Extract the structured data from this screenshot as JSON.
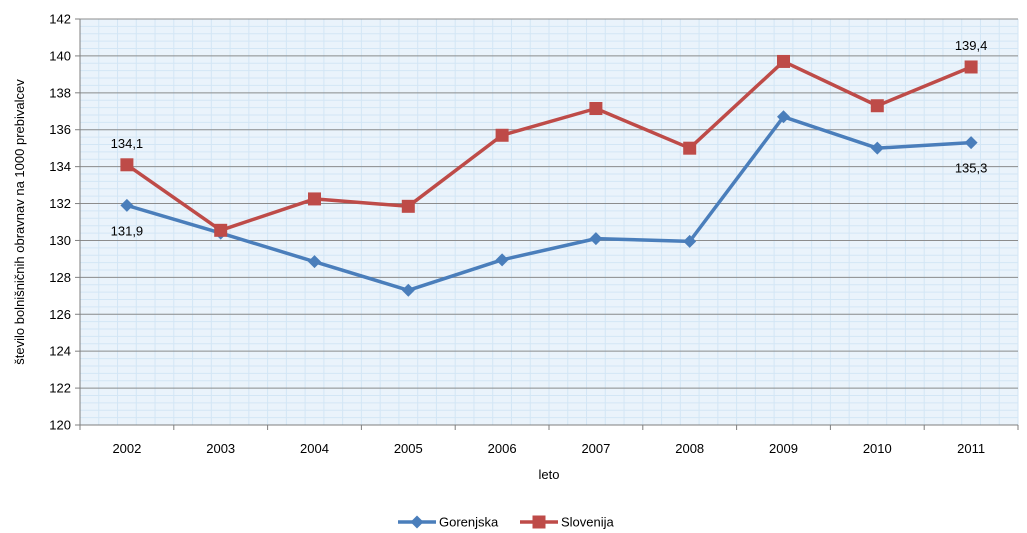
{
  "chart_data": {
    "type": "line",
    "title": "",
    "xlabel": "leto",
    "ylabel": "število bolnišničnih obravnav na 1000 prebivalcev",
    "categories": [
      "2002",
      "2003",
      "2004",
      "2005",
      "2006",
      "2007",
      "2008",
      "2009",
      "2010",
      "2011"
    ],
    "ylim": [
      120,
      142
    ],
    "yticks": [
      120,
      122,
      124,
      126,
      128,
      130,
      132,
      134,
      136,
      138,
      140,
      142
    ],
    "ytick_labels": [
      "120",
      "122",
      "124",
      "126",
      "128",
      "130",
      "132",
      "134",
      "136",
      "138",
      "140",
      "142"
    ],
    "grid": true,
    "legend_position": "bottom",
    "series": [
      {
        "name": "Gorenjska",
        "color": "#4a7ebb",
        "marker": "diamond",
        "values": [
          131.9,
          130.4,
          128.85,
          127.3,
          128.95,
          130.1,
          129.95,
          136.7,
          135.0,
          135.3
        ]
      },
      {
        "name": "Slovenija",
        "color": "#be4b48",
        "marker": "square",
        "values": [
          134.1,
          130.55,
          132.25,
          131.85,
          135.7,
          137.15,
          135.0,
          139.7,
          137.3,
          139.4
        ]
      }
    ],
    "annotations": [
      {
        "text": "131,9",
        "series": 0,
        "index": 0,
        "position": "below"
      },
      {
        "text": "134,1",
        "series": 1,
        "index": 0,
        "position": "above"
      },
      {
        "text": "135,3",
        "series": 0,
        "index": 9,
        "position": "below"
      },
      {
        "text": "139,4",
        "series": 1,
        "index": 9,
        "position": "above"
      }
    ]
  }
}
